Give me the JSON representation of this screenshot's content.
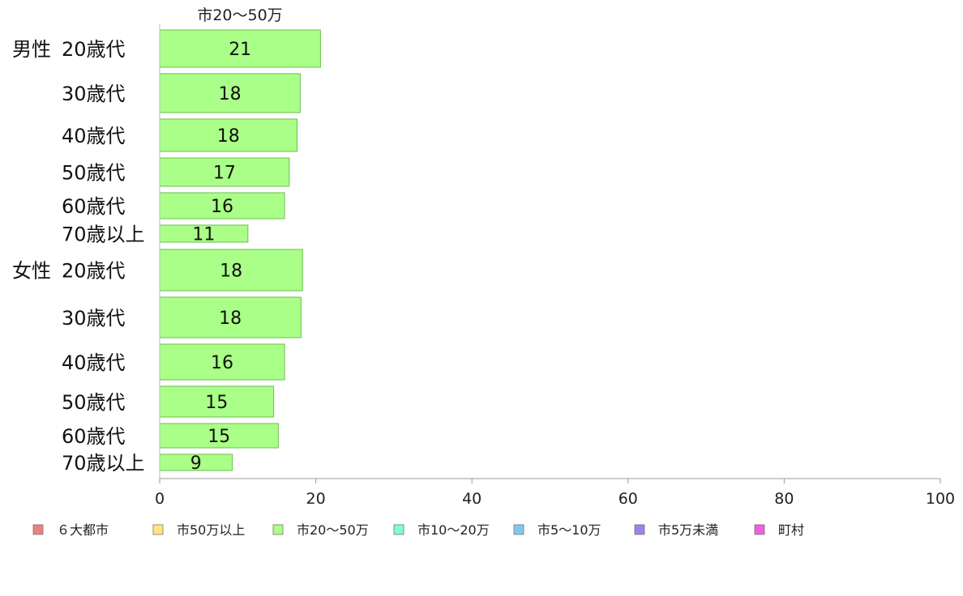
{
  "chart_data": {
    "type": "bar",
    "orientation": "horizontal",
    "top_series_label": "市20〜50万",
    "groups": [
      {
        "name": "男性",
        "categories": [
          "20歳代",
          "30歳代",
          "40歳代",
          "50歳代",
          "60歳代",
          "70歳以上"
        ],
        "values": [
          20.6,
          18,
          17.6,
          16.6,
          16,
          11.3
        ],
        "value_labels": [
          "21",
          "18",
          "18",
          "17",
          "16",
          "11"
        ]
      },
      {
        "name": "女性",
        "categories": [
          "20歳代",
          "30歳代",
          "40歳代",
          "50歳代",
          "60歳代",
          "70歳以上"
        ],
        "values": [
          18.3,
          18.1,
          16,
          14.6,
          15.2,
          9.3
        ],
        "value_labels": [
          "18",
          "18",
          "16",
          "15",
          "15",
          "9"
        ]
      }
    ],
    "xlim": [
      0,
      100
    ],
    "xticks": [
      0,
      20,
      40,
      60,
      80,
      100
    ],
    "bar_color": "#aaff88",
    "bar_edge_color": "#6abf4b",
    "legend": [
      {
        "label": "６大都市",
        "color": "#f08080"
      },
      {
        "label": "市50万以上",
        "color": "#ffe680"
      },
      {
        "label": "市20〜50万",
        "color": "#aaff88"
      },
      {
        "label": "市10〜20万",
        "color": "#80ffcc"
      },
      {
        "label": "市5〜10万",
        "color": "#80c8f0"
      },
      {
        "label": "市5万未満",
        "color": "#a080f0"
      },
      {
        "label": "町村",
        "color": "#f060e0"
      }
    ],
    "legend_position": "bottom",
    "grid": false
  }
}
